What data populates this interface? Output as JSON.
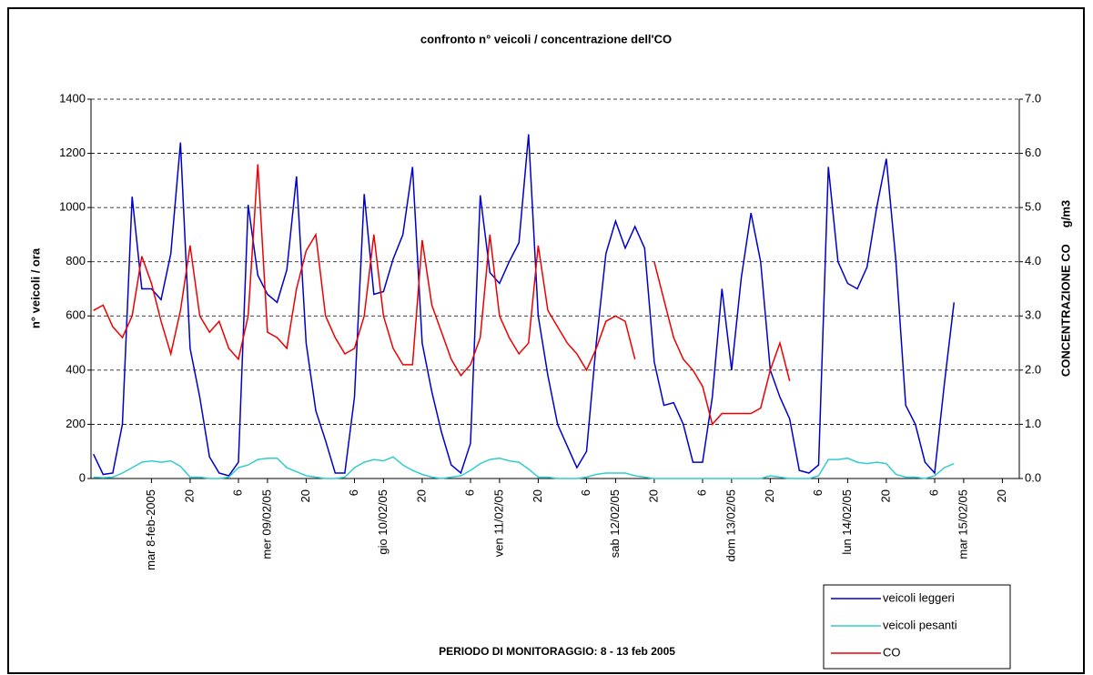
{
  "chart_data": {
    "type": "line",
    "title": "confronto n° veicoli / concentrazione dell'CO",
    "subtitle": "PERIODO DI MONITORAGGIO: 8 - 13 feb 2005",
    "y_label": "n° veicoli / ora",
    "y2_label": "CONCENTRAZIONE CO     g/m3",
    "x": [
      0,
      2,
      4,
      6,
      8,
      10,
      12,
      14,
      16,
      18,
      20,
      22,
      24,
      26,
      28,
      30,
      32,
      34,
      36,
      38,
      40,
      42,
      44,
      46,
      48,
      50,
      52,
      54,
      56,
      58,
      60,
      62,
      64,
      66,
      68,
      70,
      72,
      74,
      76,
      78,
      80,
      82,
      84,
      86,
      88,
      90,
      92,
      94,
      96,
      98,
      100,
      102,
      104,
      106,
      108,
      110,
      112,
      114,
      116,
      118,
      120,
      122,
      124,
      126,
      128,
      130,
      132,
      134,
      136,
      138,
      140,
      142,
      144,
      146,
      148,
      150,
      152,
      154,
      156,
      158,
      160,
      162,
      164,
      166,
      168,
      170,
      172,
      174,
      176,
      178
    ],
    "xlim": [
      -0.5,
      191.5
    ],
    "xticks": [
      {
        "value": 12,
        "label": "mar 8-feb-2005"
      },
      20,
      {
        "value": 30,
        "label": "6"
      },
      {
        "value": 36,
        "label": "mer 09/02/05"
      },
      {
        "value": 44,
        "label": "20"
      },
      {
        "value": 54,
        "label": "6"
      },
      {
        "value": 60,
        "label": "gio 10/02/05"
      },
      {
        "value": 68,
        "label": "20"
      },
      {
        "value": 78,
        "label": "6"
      },
      {
        "value": 84,
        "label": "ven 11/02/05"
      },
      {
        "value": 92,
        "label": "20"
      },
      {
        "value": 102,
        "label": "6"
      },
      {
        "value": 108,
        "label": "sab 12/02/05"
      },
      {
        "value": 116,
        "label": "20"
      },
      {
        "value": 126,
        "label": "6"
      },
      {
        "value": 132,
        "label": "dom 13/02/05"
      },
      {
        "value": 140,
        "label": "20"
      },
      {
        "value": 150,
        "label": "6"
      },
      {
        "value": 156,
        "label": "lun 14/02/05"
      },
      {
        "value": 164,
        "label": "20"
      },
      {
        "value": 174,
        "label": "6"
      },
      {
        "value": 180,
        "label": "mar 15/02/05"
      },
      {
        "value": 188,
        "label": "20"
      }
    ],
    "ylim": [
      0,
      1400
    ],
    "yticks": [
      0,
      200,
      400,
      600,
      800,
      1000,
      1200,
      1400
    ],
    "y2lim": [
      0,
      7
    ],
    "y2ticks": [
      {
        "value": 0,
        "label": "0.0"
      },
      {
        "value": 1,
        "label": "1.0"
      },
      {
        "value": 2,
        "label": "2.0"
      },
      {
        "value": 3,
        "label": "3.0"
      },
      {
        "value": 4,
        "label": "4.0"
      },
      {
        "value": 5,
        "label": "5.0"
      },
      {
        "value": 6,
        "label": "6.0"
      },
      {
        "value": 7,
        "label": "7.0"
      }
    ],
    "grid": true,
    "legend": "bottom-right",
    "series": [
      {
        "name": "veicoli leggeri",
        "color": "#0000cc",
        "values": [
          90,
          15,
          20,
          200,
          1040,
          700,
          700,
          660,
          830,
          1240,
          480,
          300,
          80,
          20,
          10,
          60,
          1010,
          750,
          680,
          650,
          770,
          1115,
          500,
          250,
          140,
          20,
          20,
          300,
          1050,
          680,
          690,
          810,
          900,
          1150,
          500,
          320,
          170,
          50,
          20,
          130,
          1045,
          760,
          720,
          800,
          870,
          1270,
          600,
          380,
          200,
          120,
          40,
          100,
          500,
          830,
          950,
          850,
          930,
          850,
          430,
          270,
          280,
          200,
          60,
          60,
          300,
          700,
          400,
          740,
          980,
          800,
          400,
          300,
          220,
          30,
          20,
          50,
          1150,
          800,
          720,
          700,
          780,
          1000,
          1180,
          800,
          270,
          200,
          60,
          20,
          350,
          650
        ]
      },
      {
        "name": "veicoli pesanti",
        "color": "#33cccc",
        "values": [
          5,
          3,
          5,
          20,
          40,
          60,
          65,
          60,
          65,
          45,
          5,
          5,
          0,
          0,
          5,
          40,
          50,
          70,
          75,
          75,
          40,
          25,
          10,
          5,
          0,
          0,
          5,
          40,
          60,
          70,
          65,
          80,
          50,
          30,
          15,
          5,
          0,
          5,
          10,
          30,
          55,
          70,
          75,
          65,
          60,
          35,
          5,
          5,
          0,
          0,
          0,
          5,
          15,
          20,
          20,
          20,
          10,
          5,
          0,
          0,
          0,
          0,
          0,
          0,
          0,
          0,
          0,
          0,
          0,
          0,
          10,
          5,
          0,
          0,
          0,
          10,
          70,
          70,
          75,
          60,
          55,
          60,
          55,
          15,
          5,
          5,
          0,
          10,
          40,
          55
        ]
      },
      {
        "name": "CO",
        "color": "#ee0000",
        "axis": "y2",
        "values": [
          3.1,
          3.2,
          2.8,
          2.6,
          3.0,
          4.1,
          3.6,
          2.9,
          2.3,
          3.1,
          4.3,
          3.0,
          2.7,
          2.9,
          2.4,
          2.2,
          3.0,
          5.8,
          2.7,
          2.6,
          2.4,
          3.5,
          4.2,
          4.5,
          3.0,
          2.6,
          2.3,
          2.4,
          3.0,
          4.5,
          3.0,
          2.4,
          2.1,
          2.1,
          4.4,
          3.2,
          2.7,
          2.2,
          1.9,
          2.1,
          2.6,
          4.5,
          3.0,
          2.6,
          2.3,
          2.5,
          4.3,
          3.1,
          2.8,
          2.5,
          2.3,
          2.0,
          2.4,
          2.9,
          3.0,
          2.9,
          2.2,
          null,
          4.0,
          3.3,
          2.6,
          2.2,
          2.0,
          1.7,
          1.0,
          1.2,
          1.2,
          1.2,
          1.2,
          1.3,
          2.0,
          2.5,
          1.8,
          null,
          null,
          null,
          null,
          null,
          null,
          null,
          null,
          null,
          null,
          null,
          null,
          null,
          null,
          null,
          null,
          null
        ]
      }
    ]
  }
}
